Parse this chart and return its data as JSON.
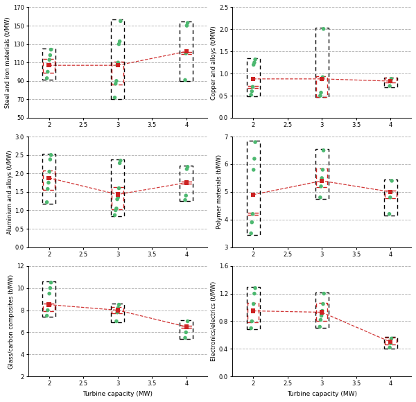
{
  "subplots": [
    {
      "ylabel": "Steel and iron materials (t/MW)",
      "ylim": [
        50,
        170
      ],
      "yticks": [
        50,
        70,
        90,
        110,
        130,
        150,
        170
      ],
      "green_points": {
        "2": [
          93,
          100,
          107,
          113,
          118,
          124
        ],
        "3": [
          72,
          87,
          90,
          107,
          110,
          130,
          133,
          155
        ],
        "4": [
          91,
          120,
          150,
          153
        ]
      },
      "red_median": {
        "2": 107,
        "3": 107,
        "4": 122
      }
    },
    {
      "ylabel": "Copper and alloys (t/MW)",
      "ylim": [
        0,
        2.5
      ],
      "yticks": [
        0,
        0.5,
        1.0,
        1.5,
        2.0,
        2.5
      ],
      "green_points": {
        "2": [
          0.52,
          0.6,
          0.7,
          1.2,
          1.25,
          1.32
        ],
        "3": [
          0.5,
          0.57,
          0.87,
          0.92,
          2.01
        ],
        "4": [
          0.72,
          0.82,
          0.88
        ]
      },
      "red_median": {
        "2": 0.88,
        "3": 0.88,
        "4": 0.83
      }
    },
    {
      "ylabel": "Aluminium and alloys (t/MW)",
      "ylim": [
        0,
        3.0
      ],
      "yticks": [
        0,
        0.5,
        1.0,
        1.5,
        2.0,
        2.5,
        3.0
      ],
      "green_points": {
        "2": [
          1.22,
          1.58,
          1.75,
          2.05,
          2.38,
          2.5
        ],
        "3": [
          0.87,
          1.0,
          1.05,
          1.3,
          1.35,
          1.6,
          2.28,
          2.35
        ],
        "4": [
          1.28,
          1.4,
          2.12,
          2.18
        ]
      },
      "red_median": {
        "2": 1.88,
        "3": 1.43,
        "4": 1.75
      }
    },
    {
      "ylabel": "Polymer materials (t/MW)",
      "ylim": [
        3,
        7
      ],
      "yticks": [
        3,
        4,
        5,
        6,
        7
      ],
      "green_points": {
        "2": [
          3.5,
          3.9,
          4.2,
          5.8,
          6.2,
          6.8
        ],
        "3": [
          4.8,
          5.2,
          5.5,
          5.8,
          6.5
        ],
        "4": [
          4.2,
          4.8,
          5.0,
          5.4
        ]
      },
      "red_median": {
        "2": 4.9,
        "3": 5.4,
        "4": 5.0
      }
    },
    {
      "ylabel": "Glass/carbon composites (t/MW)",
      "ylim": [
        2,
        12
      ],
      "yticks": [
        2,
        4,
        6,
        8,
        10,
        12
      ],
      "green_points": {
        "2": [
          7.5,
          8.0,
          8.5,
          9.5,
          10.0,
          10.5
        ],
        "3": [
          7.0,
          7.8,
          8.2,
          8.5
        ],
        "4": [
          5.5,
          6.0,
          6.5,
          7.0
        ]
      },
      "red_median": {
        "2": 8.5,
        "3": 8.0,
        "4": 6.5
      }
    },
    {
      "ylabel": "Electronics/electrics (t/MW)",
      "ylim": [
        0,
        1.6
      ],
      "yticks": [
        0,
        0.4,
        0.8,
        1.2,
        1.6
      ],
      "green_points": {
        "2": [
          0.7,
          0.8,
          0.95,
          1.05,
          1.2,
          1.28
        ],
        "3": [
          0.72,
          0.82,
          0.88,
          0.95,
          1.05,
          1.2
        ],
        "4": [
          0.42,
          0.48,
          0.55
        ]
      },
      "red_median": {
        "2": 0.95,
        "3": 0.93,
        "4": 0.5
      }
    }
  ],
  "x_positions": [
    2,
    3,
    4
  ],
  "xlim": [
    1.7,
    4.3
  ],
  "xticks": [
    2,
    2.5,
    3,
    3.5,
    4
  ],
  "xlabel": "Turbine capacity (MW)",
  "green_color": "#4db870",
  "red_color": "#cc2222",
  "line_color": "#cc2222",
  "background_color": "white",
  "grid_color": "#b0b0b0"
}
